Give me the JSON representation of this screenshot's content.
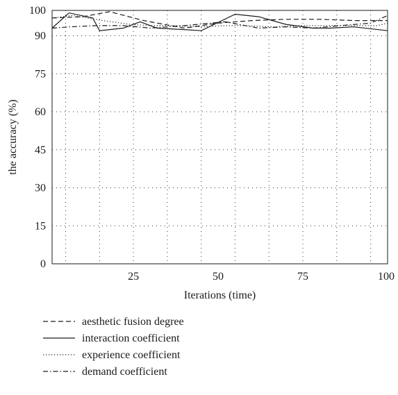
{
  "chart_data": {
    "type": "line",
    "xlabel": "Iterations (time)",
    "ylabel": "the accuracy (%)",
    "xlim": [
      1,
      100
    ],
    "ylim": [
      0,
      100
    ],
    "xticks": [
      25,
      50,
      75,
      100
    ],
    "yticks": [
      0,
      15,
      30,
      45,
      60,
      75,
      90,
      100
    ],
    "grid": true,
    "legend_position": "bottom",
    "series": [
      {
        "name": "aesthetic fusion degree",
        "style": "dashed",
        "x": [
          1,
          10,
          18,
          28,
          40,
          50,
          60,
          70,
          80,
          90,
          100
        ],
        "y": [
          97,
          97.5,
          99.5,
          96,
          93,
          95,
          96,
          96.5,
          96.5,
          96,
          96
        ]
      },
      {
        "name": "interaction coefficient",
        "style": "solid",
        "x": [
          1,
          6,
          13,
          15,
          22,
          27,
          32,
          39,
          45,
          55,
          62,
          70,
          78,
          83,
          90,
          100
        ],
        "y": [
          93,
          99,
          97,
          92,
          93,
          95.5,
          93,
          92.5,
          92,
          98.5,
          97.5,
          94.5,
          93,
          93,
          93.5,
          92
        ]
      },
      {
        "name": "experience coefficient",
        "style": "dotted",
        "x": [
          1,
          7,
          16,
          24,
          30,
          36,
          45,
          52,
          58,
          66,
          74,
          82,
          90,
          97,
          100
        ],
        "y": [
          97,
          98,
          96,
          94.5,
          94,
          94,
          93.5,
          94,
          94,
          93.5,
          94,
          94,
          94,
          94,
          95
        ]
      },
      {
        "name": "demand coefficient",
        "style": "dashdot",
        "x": [
          1,
          6,
          14,
          22,
          30,
          40,
          52,
          62,
          70,
          78,
          86,
          95,
          100
        ],
        "y": [
          93,
          93.5,
          94,
          94,
          93,
          94,
          95.5,
          93,
          93.5,
          93,
          94,
          95,
          98
        ]
      }
    ]
  }
}
